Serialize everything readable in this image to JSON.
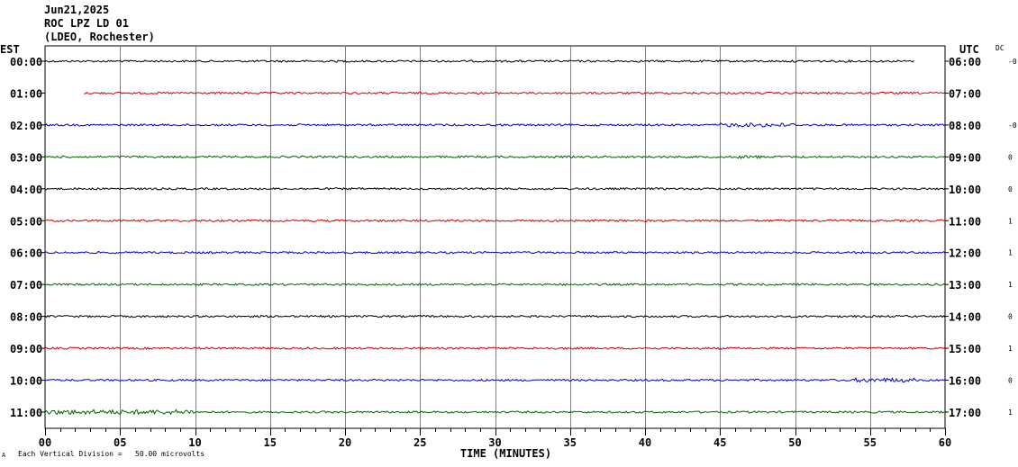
{
  "header": {
    "date": "Jun21,2025",
    "station": "ROC LPZ LD 01",
    "network": "(LDEO, Rochester)"
  },
  "left_tz": "EST",
  "right_tz": "UTC",
  "dc_label": "DC",
  "footer": {
    "scale_text": "Each Vertical Division =   50.00 microvolts",
    "corner_mark": "A"
  },
  "colors": {
    "black": "#000000",
    "red": "#d00000",
    "blue": "#0000c8",
    "green": "#006400",
    "grid": "#808080"
  },
  "chart_data": {
    "type": "line",
    "title": "ROC LPZ LD 01",
    "xlabel": "TIME (MINUTES)",
    "xlim": [
      0,
      60
    ],
    "x_ticks": [
      "00",
      "05",
      "10",
      "15",
      "20",
      "25",
      "30",
      "35",
      "40",
      "45",
      "50",
      "55",
      "60"
    ],
    "grid": true,
    "series": [
      {
        "left_label": "00:00",
        "right_label": "06:00",
        "dc": "-0",
        "color": "black",
        "start_min": 0,
        "end_min": 58
      },
      {
        "left_label": "01:00",
        "right_label": "07:00",
        "dc": "",
        "color": "red",
        "start_min": 2.6,
        "end_min": 60
      },
      {
        "left_label": "02:00",
        "right_label": "08:00",
        "dc": "-0",
        "color": "blue",
        "start_min": 0,
        "end_min": 60
      },
      {
        "left_label": "03:00",
        "right_label": "09:00",
        "dc": "0",
        "color": "green",
        "start_min": 0,
        "end_min": 60
      },
      {
        "left_label": "04:00",
        "right_label": "10:00",
        "dc": "0",
        "color": "black",
        "start_min": 0,
        "end_min": 60
      },
      {
        "left_label": "05:00",
        "right_label": "11:00",
        "dc": "1",
        "color": "red",
        "start_min": 0,
        "end_min": 60
      },
      {
        "left_label": "06:00",
        "right_label": "12:00",
        "dc": "1",
        "color": "blue",
        "start_min": 0,
        "end_min": 60
      },
      {
        "left_label": "07:00",
        "right_label": "13:00",
        "dc": "1",
        "color": "green",
        "start_min": 0,
        "end_min": 60
      },
      {
        "left_label": "08:00",
        "right_label": "14:00",
        "dc": "0",
        "color": "black",
        "start_min": 0,
        "end_min": 60
      },
      {
        "left_label": "09:00",
        "right_label": "15:00",
        "dc": "1",
        "color": "red",
        "start_min": 0,
        "end_min": 60
      },
      {
        "left_label": "10:00",
        "right_label": "16:00",
        "dc": "0",
        "color": "blue",
        "start_min": 0,
        "end_min": 60
      },
      {
        "left_label": "11:00",
        "right_label": "17:00",
        "dc": "1",
        "color": "green",
        "start_min": 0,
        "end_min": 60
      }
    ]
  }
}
